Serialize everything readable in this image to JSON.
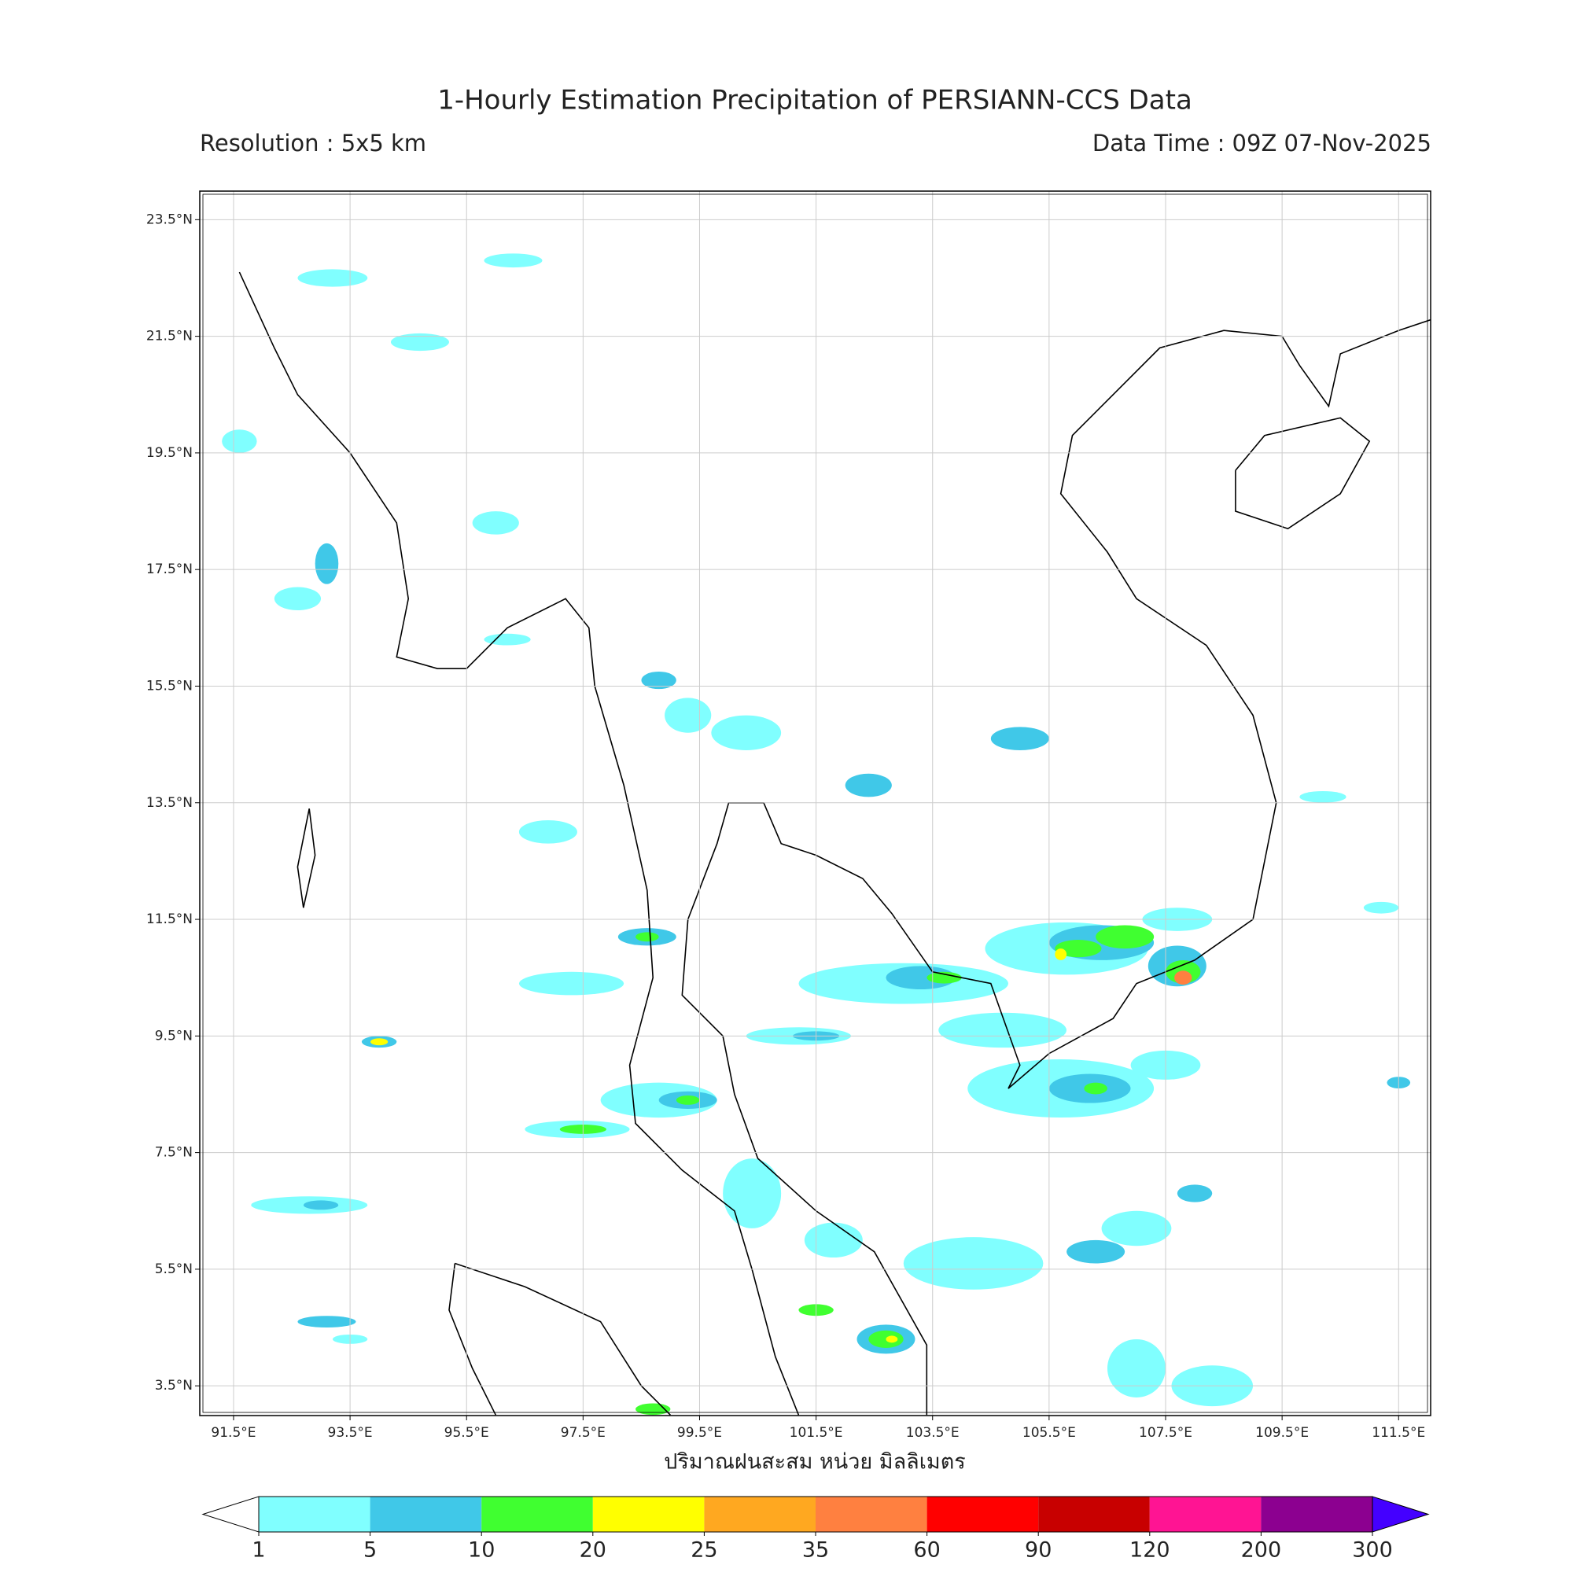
{
  "header": {
    "title": "1-Hourly Estimation Precipitation of PERSIANN-CCS Data",
    "resolution": "Resolution : 5x5 km",
    "data_time": "Data Time : 09Z 07-Nov-2025"
  },
  "map": {
    "xlim": [
      90.92,
      112.05
    ],
    "ylim": [
      2.99,
      23.99
    ],
    "xticks": [
      {
        "value": 91.5,
        "label": "91.5°E"
      },
      {
        "value": 93.5,
        "label": "93.5°E"
      },
      {
        "value": 95.5,
        "label": "95.5°E"
      },
      {
        "value": 97.5,
        "label": "97.5°E"
      },
      {
        "value": 99.5,
        "label": "99.5°E"
      },
      {
        "value": 101.5,
        "label": "101.5°E"
      },
      {
        "value": 103.5,
        "label": "103.5°E"
      },
      {
        "value": 105.5,
        "label": "105.5°E"
      },
      {
        "value": 107.5,
        "label": "107.5°E"
      },
      {
        "value": 109.5,
        "label": "109.5°E"
      },
      {
        "value": 111.5,
        "label": "111.5°E"
      }
    ],
    "yticks": [
      {
        "value": 23.5,
        "label": "23.5°N"
      },
      {
        "value": 21.5,
        "label": "21.5°N"
      },
      {
        "value": 19.5,
        "label": "19.5°N"
      },
      {
        "value": 17.5,
        "label": "17.5°N"
      },
      {
        "value": 15.5,
        "label": "15.5°N"
      },
      {
        "value": 13.5,
        "label": "13.5°N"
      },
      {
        "value": 11.5,
        "label": "11.5°N"
      },
      {
        "value": 9.5,
        "label": "9.5°N"
      },
      {
        "value": 7.5,
        "label": "7.5°N"
      },
      {
        "value": 5.5,
        "label": "5.5°N"
      },
      {
        "value": 3.5,
        "label": "3.5°N"
      }
    ],
    "grid": true,
    "xlabel": "ปริมาณฝนสะสม หน่วย มิลลิเมตร"
  },
  "colorbar": {
    "levels": [
      1,
      5,
      10,
      20,
      25,
      35,
      60,
      90,
      120,
      200,
      300
    ],
    "colors": [
      "#80ffff",
      "#40c8e8",
      "#40ff30",
      "#ffff00",
      "#ffa820",
      "#ff8040",
      "#ff0000",
      "#c80000",
      "#ff1493",
      "#8c0090"
    ],
    "under_color": "#ffffff",
    "over_color": "#4400ff"
  }
}
